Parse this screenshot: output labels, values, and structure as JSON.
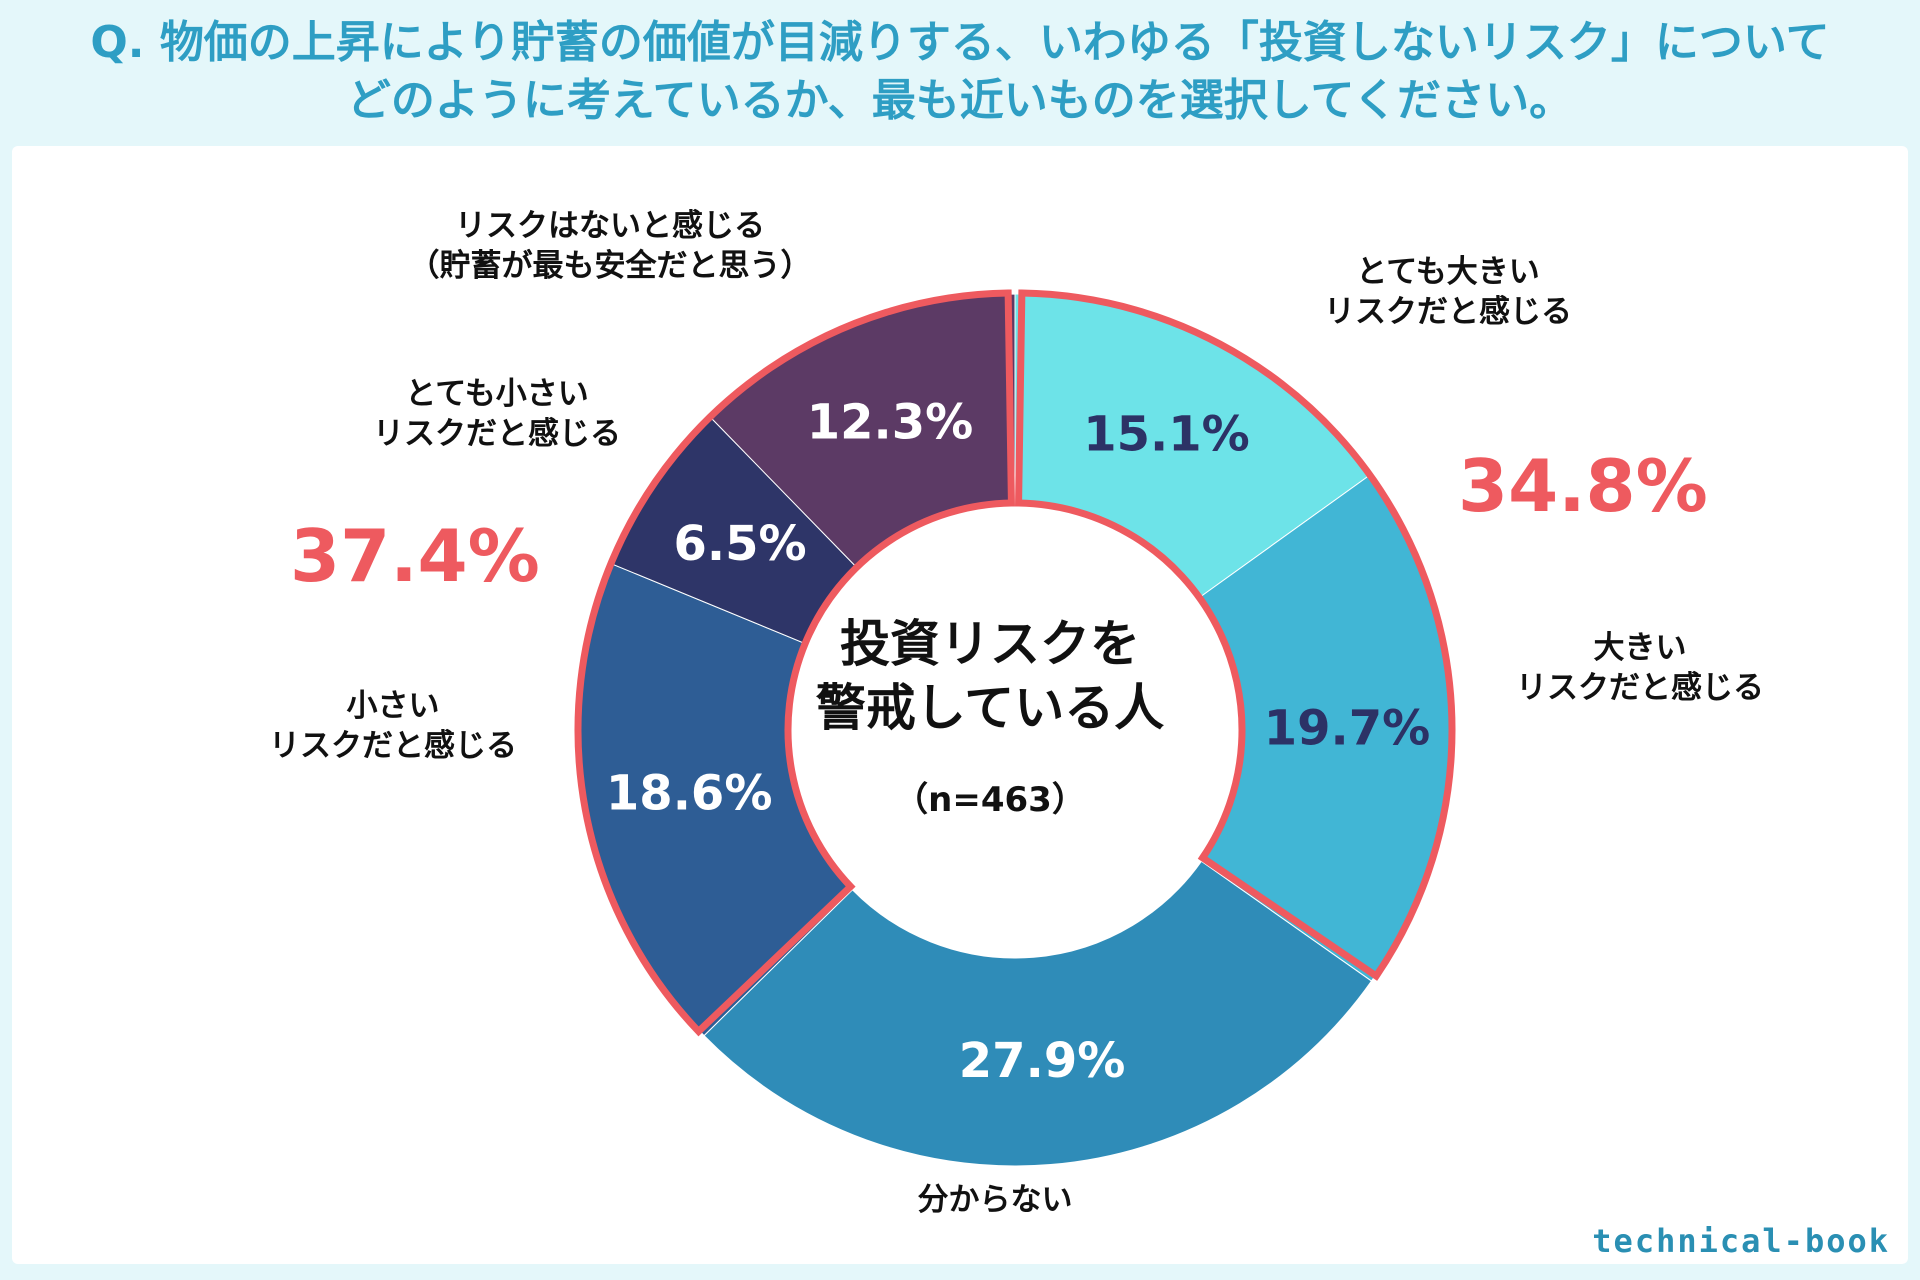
{
  "question": {
    "line1": "Q. 物価の上昇により貯蓄の価値が目減りする、いわゆる「投資しないリスク」について",
    "line2": "どのように考えているか、最も近いものを選択してください。"
  },
  "center": {
    "title_line1": "投資リスクを",
    "title_line2": "警戒している人",
    "n_label": "（n=463）"
  },
  "brand": "technical-book",
  "colors": {
    "accent": "#ee5a5f",
    "title": "#2e9ec4",
    "background": "#e4f7fa"
  },
  "chart_data": {
    "type": "pie",
    "title": "Q. 物価の上昇により貯蓄の価値が目減りする、いわゆる「投資しないリスク」についてどのように考えているか、最も近いものを選択してください。",
    "center_label": "投資リスクを警戒している人（n=463）",
    "slices": [
      {
        "label": "とても大きいリスクだと感じる",
        "value": 15.1,
        "value_label": "15.1%",
        "color": "#6de3e8",
        "value_color": "#2c3266",
        "label_lines": [
          "とても大きい",
          "リスクだと感じる"
        ]
      },
      {
        "label": "大きいリスクだと感じる",
        "value": 19.7,
        "value_label": "19.7%",
        "color": "#41b6d5",
        "value_color": "#2c3266",
        "label_lines": [
          "大きい",
          "リスクだと感じる"
        ]
      },
      {
        "label": "分からない",
        "value": 27.9,
        "value_label": "27.9%",
        "color": "#2f8cb8",
        "value_color": "#ffffff",
        "label_lines": [
          "分からない"
        ]
      },
      {
        "label": "小さいリスクだと感じる",
        "value": 18.6,
        "value_label": "18.6%",
        "color": "#2e5d95",
        "value_color": "#ffffff",
        "label_lines": [
          "小さい",
          "リスクだと感じる"
        ]
      },
      {
        "label": "とても小さいリスクだと感じる",
        "value": 6.5,
        "value_label": "6.5%",
        "color": "#2e3568",
        "value_color": "#ffffff",
        "label_lines": [
          "とても小さい",
          "リスクだと感じる"
        ]
      },
      {
        "label": "リスクはないと感じる（貯蓄が最も安全だと思う）",
        "value": 12.3,
        "value_label": "12.3%",
        "color": "#5c3a65",
        "value_color": "#ffffff",
        "label_lines": [
          "リスクはないと感じる",
          "（貯蓄が最も安全だと思う）"
        ]
      }
    ],
    "groups": [
      {
        "label": "34.8%",
        "value": 34.8,
        "slices": [
          0,
          1
        ]
      },
      {
        "label": "37.4%",
        "value": 37.4,
        "slices": [
          3,
          4,
          5
        ]
      }
    ]
  }
}
